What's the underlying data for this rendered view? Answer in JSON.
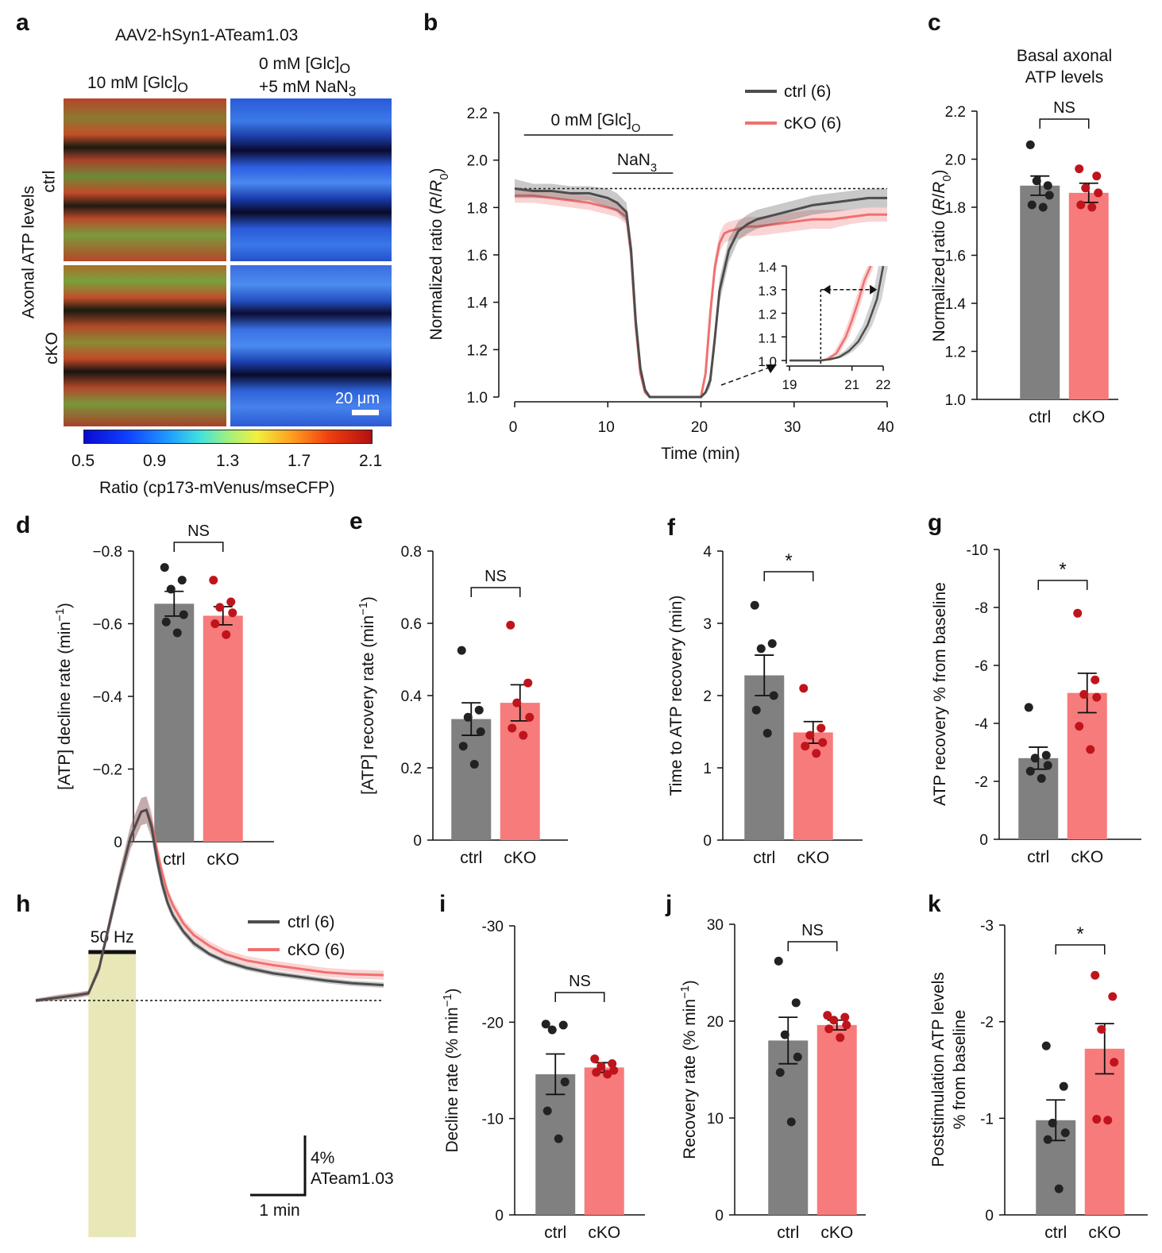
{
  "panel_letters": {
    "a": "a",
    "b": "b",
    "c": "c",
    "d": "d",
    "e": "e",
    "f": "f",
    "g": "g",
    "h": "h",
    "i": "i",
    "j": "j",
    "k": "k"
  },
  "colors": {
    "ctrl": "#4d4d4d",
    "cko": "#f07070",
    "ctrl_bar": "#808080",
    "cko_bar": "#f77b7b",
    "ctrl_dot": "#222222",
    "cko_dot": "#c0141c",
    "stim": "#e8e7b8"
  },
  "panel_a": {
    "title": "AAV2-hSyn1-ATeam1.03",
    "col1_label": "10 mM [Glc]",
    "col1_sub": "O",
    "col2_label_line1": "0 mM [Glc]",
    "col2_sub": "O",
    "col2_label_line2": "+5 mM NaN",
    "col2_sub2": "3",
    "row_label": "Axonal ATP levels",
    "row1": "ctrl",
    "row2": "cKO",
    "scale_bar": "20 μm",
    "colorbar_ticks": [
      "0.5",
      "0.9",
      "1.3",
      "1.7",
      "2.1"
    ],
    "colorbar_label": "Ratio (cp173-mVenus/mseCFP)"
  },
  "panel_h_labels": {
    "stim": "50 Hz",
    "scale_y": "4%",
    "scale_y2": "ATeam1.03",
    "scale_x": "1 min"
  },
  "chart_data": [
    {
      "id": "b",
      "type": "line",
      "title": "",
      "xlabel": "Time (min)",
      "ylabel": "Normalized ratio (R/R0)",
      "xlim": [
        0,
        40
      ],
      "ylim": [
        1.0,
        2.2
      ],
      "xticks": [
        "0",
        "10",
        "20",
        "30",
        "40"
      ],
      "yticks": [
        "1.0",
        "1.2",
        "1.4",
        "1.6",
        "1.8",
        "2.0",
        "2.2"
      ],
      "annotations": {
        "glc": "0 mM [Glc]",
        "glc_sub": "O",
        "nan": "NaN",
        "nan_sub": "3",
        "glc_range": [
          1,
          17
        ],
        "nan_range": [
          10.5,
          17
        ]
      },
      "baseline": 1.88,
      "legend": [
        "ctrl (6)",
        "cKO (6)"
      ],
      "series": [
        {
          "name": "ctrl (6)",
          "x": [
            0,
            2,
            4,
            6,
            8,
            10,
            11,
            12,
            12.5,
            13,
            13.5,
            14,
            14.5,
            15,
            16,
            18,
            19,
            20,
            20.5,
            21,
            21.5,
            22,
            23,
            24,
            25,
            26,
            28,
            30,
            32,
            34,
            36,
            38,
            40
          ],
          "y": [
            1.88,
            1.87,
            1.87,
            1.86,
            1.86,
            1.84,
            1.82,
            1.78,
            1.62,
            1.32,
            1.12,
            1.03,
            1.0,
            1.0,
            1.0,
            1.0,
            1.0,
            1.0,
            1.02,
            1.07,
            1.25,
            1.45,
            1.62,
            1.7,
            1.73,
            1.75,
            1.77,
            1.79,
            1.81,
            1.82,
            1.83,
            1.84,
            1.84
          ],
          "err": [
            0.04,
            0.03,
            0.03,
            0.03,
            0.03,
            0.04,
            0.04,
            0.04,
            0.04,
            0.03,
            0.02,
            0.01,
            0,
            0,
            0,
            0,
            0,
            0,
            0.01,
            0.03,
            0.05,
            0.05,
            0.05,
            0.04,
            0.04,
            0.04,
            0.04,
            0.04,
            0.04,
            0.04,
            0.04,
            0.04,
            0.04
          ]
        },
        {
          "name": "cKO (6)",
          "x": [
            0,
            2,
            4,
            6,
            8,
            10,
            11,
            12,
            12.5,
            13,
            13.5,
            14,
            14.5,
            15,
            16,
            18,
            19,
            20,
            20.5,
            21,
            21.5,
            22,
            22.5,
            23,
            24,
            25,
            26,
            28,
            30,
            32,
            34,
            36,
            38,
            40
          ],
          "y": [
            1.85,
            1.85,
            1.84,
            1.83,
            1.82,
            1.8,
            1.79,
            1.76,
            1.6,
            1.3,
            1.1,
            1.02,
            1.0,
            1.0,
            1.0,
            1.0,
            1.0,
            1.0,
            1.1,
            1.35,
            1.55,
            1.65,
            1.69,
            1.7,
            1.71,
            1.72,
            1.72,
            1.73,
            1.74,
            1.75,
            1.75,
            1.76,
            1.77,
            1.77
          ],
          "err": [
            0.03,
            0.03,
            0.03,
            0.03,
            0.03,
            0.03,
            0.03,
            0.03,
            0.03,
            0.02,
            0.02,
            0.01,
            0,
            0,
            0,
            0,
            0,
            0,
            0.02,
            0.04,
            0.04,
            0.04,
            0.04,
            0.04,
            0.04,
            0.04,
            0.04,
            0.04,
            0.04,
            0.04,
            0.04,
            0.03,
            0.03,
            0.03
          ]
        }
      ],
      "inset": {
        "xlim": [
          19,
          22
        ],
        "ylim": [
          1.0,
          1.4
        ],
        "xticks": [
          "19",
          "21",
          "22"
        ],
        "yticks": [
          "1.0",
          "1.1",
          "1.2",
          "1.3",
          "1.4"
        ],
        "marker_x": 20.0,
        "series": [
          {
            "name": "ctrl",
            "x": [
              19,
              19.5,
              20,
              20.3,
              20.6,
              20.9,
              21.2,
              21.5,
              21.8,
              22
            ],
            "y": [
              1.0,
              1.0,
              1.0,
              1.005,
              1.015,
              1.04,
              1.08,
              1.15,
              1.26,
              1.4
            ]
          },
          {
            "name": "cKO",
            "x": [
              19,
              19.5,
              20,
              20.2,
              20.5,
              20.8,
              21.0,
              21.2,
              21.4,
              21.6
            ],
            "y": [
              1.0,
              1.0,
              1.0,
              1.005,
              1.03,
              1.1,
              1.17,
              1.25,
              1.34,
              1.4
            ]
          }
        ]
      }
    },
    {
      "id": "c",
      "type": "bar",
      "title": "Basal axonal ATP levels",
      "title_line1": "Basal axonal",
      "title_line2": "ATP levels",
      "ylabel": "Normalized ratio (R/R0)",
      "ylim": [
        1.0,
        2.2
      ],
      "yticks": [
        "1.0",
        "1.2",
        "1.4",
        "1.6",
        "1.8",
        "2.0",
        "2.2"
      ],
      "categories": [
        "ctrl",
        "cKO"
      ],
      "values": [
        1.89,
        1.86
      ],
      "sem": [
        0.04,
        0.04
      ],
      "points": [
        [
          2.06,
          1.89,
          1.91,
          1.85,
          1.81,
          1.8
        ],
        [
          1.96,
          1.93,
          1.88,
          1.86,
          1.81,
          1.8
        ]
      ],
      "sig": "NS"
    },
    {
      "id": "d",
      "type": "bar",
      "ylabel": "[ATP] decline rate (min-1)",
      "ylim": [
        0,
        -0.8
      ],
      "yticks": [
        "0",
        "−0.2",
        "−0.4",
        "−0.6",
        "−0.8"
      ],
      "categories": [
        "ctrl",
        "cKO"
      ],
      "values": [
        -0.655,
        -0.622
      ],
      "sem": [
        0.034,
        0.025
      ],
      "points": [
        [
          -0.755,
          -0.72,
          -0.695,
          -0.625,
          -0.605,
          -0.575
        ],
        [
          -0.72,
          -0.66,
          -0.645,
          -0.63,
          -0.6,
          -0.57
        ]
      ],
      "sig": "NS"
    },
    {
      "id": "e",
      "type": "bar",
      "ylabel": "[ATP] recovery rate (min-1)",
      "ylim": [
        0,
        0.8
      ],
      "yticks": [
        "0",
        "0.2",
        "0.4",
        "0.6",
        "0.8"
      ],
      "categories": [
        "ctrl",
        "cKO"
      ],
      "values": [
        0.335,
        0.38
      ],
      "sem": [
        0.045,
        0.05
      ],
      "points": [
        [
          0.525,
          0.36,
          0.34,
          0.3,
          0.26,
          0.21
        ],
        [
          0.595,
          0.435,
          0.38,
          0.34,
          0.31,
          0.29
        ]
      ],
      "sig": "NS"
    },
    {
      "id": "f",
      "type": "bar",
      "ylabel": "Time to ATP recovery (min)",
      "ylim": [
        0,
        4
      ],
      "yticks": [
        "0",
        "1",
        "2",
        "3",
        "4"
      ],
      "categories": [
        "ctrl",
        "cKO"
      ],
      "values": [
        2.28,
        1.49
      ],
      "sem": [
        0.28,
        0.15
      ],
      "points": [
        [
          3.25,
          2.72,
          2.65,
          2.0,
          1.8,
          1.48
        ],
        [
          2.1,
          1.55,
          1.45,
          1.35,
          1.3,
          1.2
        ]
      ],
      "sig": "*"
    },
    {
      "id": "g",
      "type": "bar",
      "ylabel": "ATP recovery % from baseline",
      "ylim": [
        0,
        -10
      ],
      "yticks": [
        "0",
        "-2",
        "-4",
        "-6",
        "-8",
        "-10"
      ],
      "categories": [
        "ctrl",
        "cKO"
      ],
      "values": [
        -2.8,
        -5.05
      ],
      "sem": [
        0.38,
        0.68
      ],
      "points": [
        [
          -4.55,
          -2.9,
          -2.8,
          -2.55,
          -2.35,
          -2.1
        ],
        [
          -7.8,
          -5.5,
          -5.0,
          -4.9,
          -3.9,
          -3.1
        ]
      ],
      "sig": "*"
    },
    {
      "id": "h",
      "type": "line",
      "legend": [
        "ctrl (6)",
        "cKO (6)"
      ],
      "xlim": [
        -1.0,
        5.6
      ],
      "ylim": [
        -24,
        4
      ],
      "stim_range": [
        0,
        0.9
      ],
      "series": [
        {
          "name": "ctrl (6)",
          "x": [
            -1.0,
            -0.6,
            -0.2,
            0,
            0.2,
            0.4,
            0.6,
            0.8,
            1.0,
            1.1,
            1.2,
            1.3,
            1.4,
            1.5,
            1.6,
            1.8,
            2.0,
            2.3,
            2.6,
            3.0,
            3.5,
            4.0,
            4.5,
            5.0,
            5.6
          ],
          "y": [
            0,
            -0.3,
            -0.6,
            -0.8,
            -3.5,
            -8.5,
            -13.5,
            -18,
            -20.8,
            -21.0,
            -19,
            -15.5,
            -12.8,
            -10.8,
            -9.4,
            -7.6,
            -6.3,
            -5.1,
            -4.3,
            -3.6,
            -3.0,
            -2.6,
            -2.2,
            -1.9,
            -1.7
          ],
          "err": [
            0.2,
            0.3,
            0.3,
            0.3,
            0.5,
            0.8,
            1.0,
            1.3,
            1.5,
            1.5,
            1.3,
            1.0,
            0.8,
            0.6,
            0.5,
            0.4,
            0.4,
            0.3,
            0.3,
            0.3,
            0.3,
            0.3,
            0.3,
            0.3,
            0.3
          ]
        },
        {
          "name": "cKO (6)",
          "x": [
            -1.0,
            -0.6,
            -0.2,
            0,
            0.2,
            0.4,
            0.6,
            0.8,
            1.0,
            1.1,
            1.2,
            1.3,
            1.4,
            1.5,
            1.6,
            1.8,
            2.0,
            2.3,
            2.6,
            3.0,
            3.5,
            4.0,
            4.5,
            5.0,
            5.6
          ],
          "y": [
            0,
            -0.3,
            -0.6,
            -0.8,
            -3.5,
            -8.5,
            -13.5,
            -18,
            -20.8,
            -21.0,
            -19.5,
            -16.5,
            -14,
            -11.9,
            -10.5,
            -8.5,
            -7.2,
            -6.0,
            -5.1,
            -4.4,
            -3.9,
            -3.5,
            -3.1,
            -2.9,
            -2.8
          ],
          "err": [
            0.2,
            0.3,
            0.3,
            0.3,
            0.5,
            0.8,
            1.0,
            1.3,
            1.5,
            1.5,
            1.3,
            1.0,
            0.8,
            0.6,
            0.6,
            0.5,
            0.5,
            0.5,
            0.5,
            0.5,
            0.5,
            0.5,
            0.5,
            0.5,
            0.5
          ]
        }
      ]
    },
    {
      "id": "i",
      "type": "bar",
      "ylabel": "Decline rate (% min-1)",
      "ylim": [
        0,
        -30
      ],
      "yticks": [
        "0",
        "-10",
        "-20",
        "-30"
      ],
      "categories": [
        "ctrl",
        "cKO"
      ],
      "values": [
        -14.6,
        -15.3
      ],
      "sem": [
        2.1,
        0.5
      ],
      "points": [
        [
          -19.8,
          -19.7,
          -19.2,
          -13.8,
          -10.8,
          -7.9
        ],
        [
          -16.2,
          -15.7,
          -15.4,
          -15.0,
          -14.8,
          -14.6
        ]
      ],
      "sig": "NS"
    },
    {
      "id": "j",
      "type": "bar",
      "ylabel": "Recovery rate (% min-1)",
      "ylim": [
        0,
        30
      ],
      "yticks": [
        "0",
        "10",
        "20",
        "30"
      ],
      "categories": [
        "ctrl",
        "cKO"
      ],
      "values": [
        18.0,
        19.6
      ],
      "sem": [
        2.4,
        0.5
      ],
      "points": [
        [
          26.2,
          21.9,
          18.6,
          16.3,
          14.7,
          9.6
        ],
        [
          20.6,
          20.4,
          20.1,
          19.6,
          19.2,
          18.3
        ]
      ],
      "sig": "NS"
    },
    {
      "id": "k",
      "type": "bar",
      "ylabel": "Poststimulation ATP levels % from baseline",
      "ylabel_line1": "Poststimulation ATP levels",
      "ylabel_line2": "% from baseline",
      "ylim": [
        0,
        -3
      ],
      "yticks": [
        "0",
        "-1",
        "-2",
        "-3"
      ],
      "categories": [
        "ctrl",
        "cKO"
      ],
      "values": [
        -0.98,
        -1.72
      ],
      "sem": [
        0.21,
        0.26
      ],
      "points": [
        [
          -1.75,
          -1.33,
          -0.95,
          -0.85,
          -0.78,
          -0.27
        ],
        [
          -2.48,
          -2.26,
          -1.92,
          -1.58,
          -0.99,
          -0.98
        ]
      ],
      "sig": "*"
    }
  ]
}
